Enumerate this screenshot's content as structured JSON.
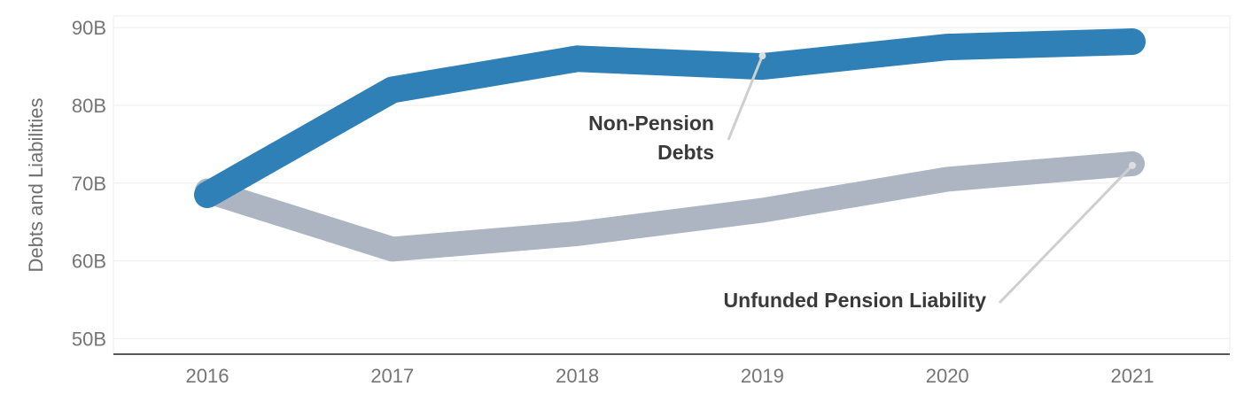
{
  "chart_data": {
    "type": "line",
    "title": "",
    "xlabel": "",
    "ylabel": "Debts and Liabilities",
    "x": [
      "2016",
      "2017",
      "2018",
      "2019",
      "2020",
      "2021"
    ],
    "y_ticks": [
      "50B",
      "60B",
      "70B",
      "80B",
      "90B"
    ],
    "y_tick_values": [
      50,
      60,
      70,
      80,
      90
    ],
    "ylim": [
      48,
      91.5
    ],
    "grid": true,
    "legend": "none",
    "series": [
      {
        "key": "unfunded",
        "values": [
          69,
          61.5,
          63.5,
          66.5,
          70.5,
          72.5
        ],
        "color": "#adb5c3",
        "annotation": "Unfunded Pension Liability"
      },
      {
        "key": "nonpension",
        "values": [
          68.5,
          82,
          86,
          85,
          87.5,
          88.2
        ],
        "color": "#2e80b7",
        "annotation": "Non-Pension\nDebts"
      }
    ]
  }
}
